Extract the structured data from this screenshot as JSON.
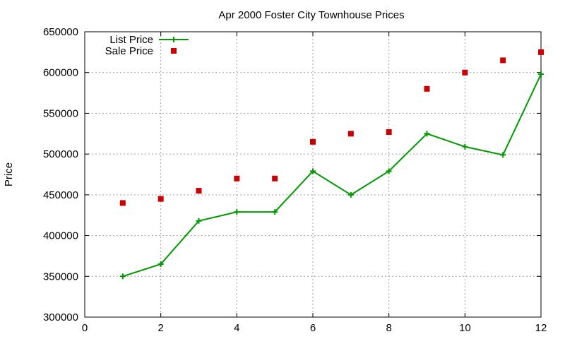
{
  "chart_data": {
    "type": "line",
    "title": "Apr 2000 Foster City Townhouse Prices",
    "xlabel": "",
    "ylabel": "Price",
    "xlim": [
      0,
      12
    ],
    "ylim": [
      300000,
      650000
    ],
    "x_ticks": [
      0,
      2,
      4,
      6,
      8,
      10,
      12
    ],
    "y_ticks": [
      300000,
      350000,
      400000,
      450000,
      500000,
      550000,
      600000,
      650000
    ],
    "grid": true,
    "legend_position": "top-left",
    "series": [
      {
        "name": "List Price",
        "style": "line-with-plus-markers",
        "color": "#009900",
        "x": [
          1,
          2,
          3,
          4,
          5,
          6,
          7,
          8,
          9,
          10,
          11,
          12
        ],
        "values": [
          350000,
          365000,
          418000,
          429000,
          429000,
          479000,
          450000,
          479000,
          525000,
          509000,
          499000,
          598000
        ]
      },
      {
        "name": "Sale Price",
        "style": "square-points",
        "color": "#cc0000",
        "x": [
          1,
          2,
          3,
          4,
          5,
          6,
          7,
          8,
          9,
          10,
          11,
          12
        ],
        "values": [
          440000,
          445000,
          455000,
          470000,
          470000,
          515000,
          525000,
          527000,
          580000,
          600000,
          615000,
          625000
        ]
      }
    ]
  }
}
